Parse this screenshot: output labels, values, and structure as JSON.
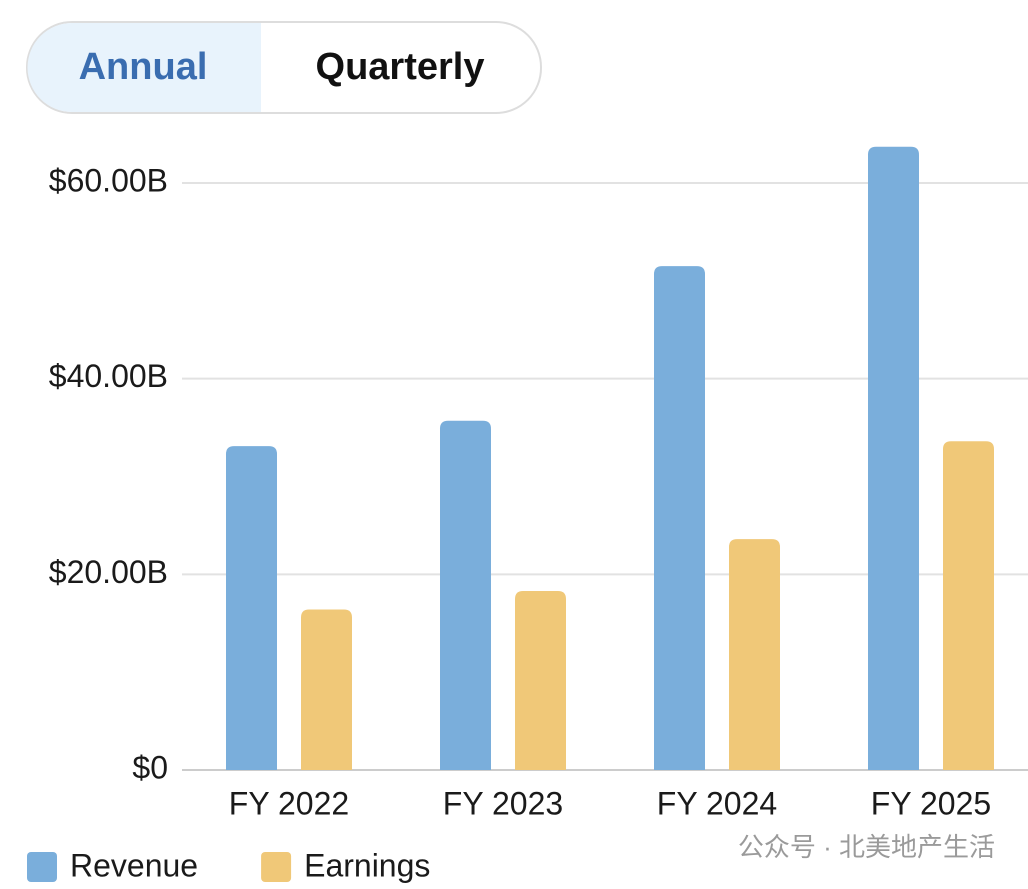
{
  "tabs": [
    "Annual",
    "Quarterly"
  ],
  "chart_data": {
    "type": "bar",
    "categories": [
      "FY 2022",
      "FY 2023",
      "FY 2024",
      "FY 2025"
    ],
    "series": [
      {
        "name": "Revenue",
        "color": "#7aaedb",
        "values": [
          33.1,
          35.7,
          51.5,
          63.7
        ]
      },
      {
        "name": "Earnings",
        "color": "#f0c878",
        "values": [
          16.4,
          18.3,
          23.6,
          33.6
        ]
      }
    ],
    "ylim": [
      0,
      60
    ],
    "yticks": [
      {
        "value": 0,
        "label": "$0"
      },
      {
        "value": 20,
        "label": "$20.00B"
      },
      {
        "value": 40,
        "label": "$40.00B"
      },
      {
        "value": 60,
        "label": "$60.00B"
      }
    ],
    "grid": true
  },
  "watermark": "公众号 · 北美地产生活"
}
